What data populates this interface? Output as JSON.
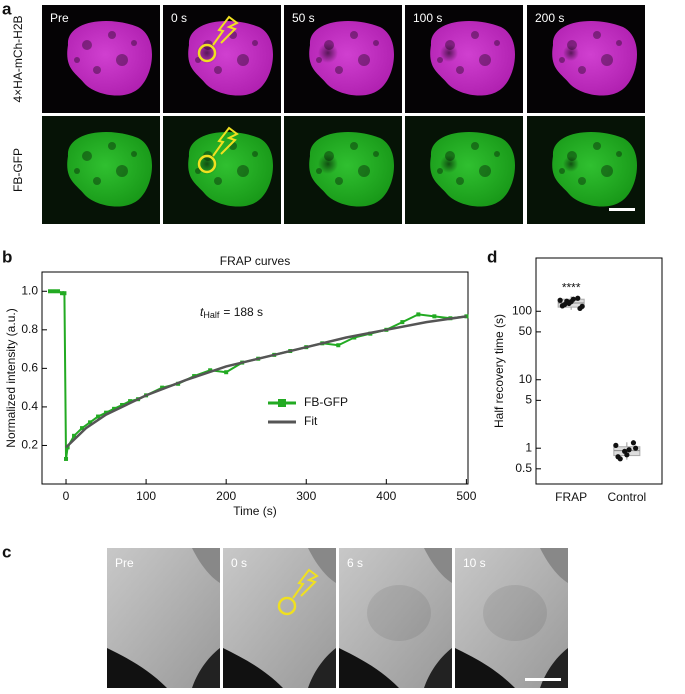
{
  "panel_labels": [
    "a",
    "b",
    "c",
    "d"
  ],
  "panel_a": {
    "time_labels": [
      "Pre",
      "0 s",
      "50 s",
      "100 s",
      "200 s"
    ],
    "row_labels": [
      "4×HA-mCh-H2B",
      "FB-GFP"
    ]
  },
  "panel_c": {
    "time_labels": [
      "Pre",
      "0 s",
      "6 s",
      "10 s"
    ]
  },
  "chart_data": [
    {
      "type": "line",
      "title": "FRAP curves",
      "xlabel": "Time (s)",
      "ylabel": "Normalized intensity (a.u.)",
      "xlim": [
        -30,
        502
      ],
      "ylim": [
        0,
        1.1
      ],
      "xticks": [
        0,
        100,
        200,
        300,
        400,
        500
      ],
      "yticks": [
        0.2,
        0.4,
        0.6,
        0.8,
        {
          "value": 1,
          "label": "1.0"
        }
      ],
      "legend": "center",
      "annotation": {
        "symbol": "t",
        "subscript": "Half",
        "text": "= 188 s"
      },
      "series": [
        {
          "name": "FB-GFP",
          "color": "#22aa22",
          "marker": "square",
          "x": [
            -20,
            -15,
            -10,
            -5,
            -2,
            0,
            2,
            10,
            20,
            30,
            40,
            50,
            60,
            70,
            80,
            90,
            100,
            120,
            140,
            160,
            180,
            200,
            220,
            240,
            260,
            280,
            300,
            320,
            340,
            360,
            380,
            400,
            420,
            440,
            460,
            480,
            500
          ],
          "values": [
            1.0,
            1.0,
            1.0,
            0.99,
            0.99,
            0.13,
            0.19,
            0.25,
            0.29,
            0.32,
            0.35,
            0.37,
            0.39,
            0.41,
            0.43,
            0.44,
            0.46,
            0.5,
            0.52,
            0.56,
            0.59,
            0.58,
            0.63,
            0.65,
            0.67,
            0.69,
            0.71,
            0.73,
            0.72,
            0.76,
            0.78,
            0.8,
            0.84,
            0.88,
            0.87,
            0.86,
            0.87
          ]
        },
        {
          "name": "Fit",
          "color": "#555555",
          "x": [
            0,
            25,
            50,
            75,
            100,
            150,
            200,
            250,
            300,
            350,
            400,
            450,
            500
          ],
          "values": [
            0.19,
            0.29,
            0.36,
            0.41,
            0.46,
            0.54,
            0.61,
            0.66,
            0.71,
            0.76,
            0.8,
            0.84,
            0.87
          ]
        }
      ]
    },
    {
      "type": "box-scatter",
      "ylabel": "Half recovery time (s)",
      "log_y": true,
      "ylim": [
        0.3,
        600
      ],
      "yticks": [
        0.5,
        1,
        5,
        10,
        50,
        100
      ],
      "categories": [
        "FRAP",
        "Control"
      ],
      "annotation": "****",
      "color": "#111111",
      "box_color": "#dddddd",
      "values": [
        [
          145,
          130,
          155,
          120,
          138,
          110,
          125,
          150,
          118,
          140
        ],
        [
          1.1,
          0.9,
          1.2,
          0.75,
          0.8,
          1.0,
          0.7,
          0.95
        ]
      ],
      "boxes": [
        {
          "q1": 115,
          "median": 132,
          "q3": 150,
          "whislo": 105,
          "whishi": 165
        },
        {
          "q1": 0.78,
          "median": 0.92,
          "q3": 1.05,
          "whislo": 0.68,
          "whishi": 1.22
        }
      ]
    }
  ]
}
